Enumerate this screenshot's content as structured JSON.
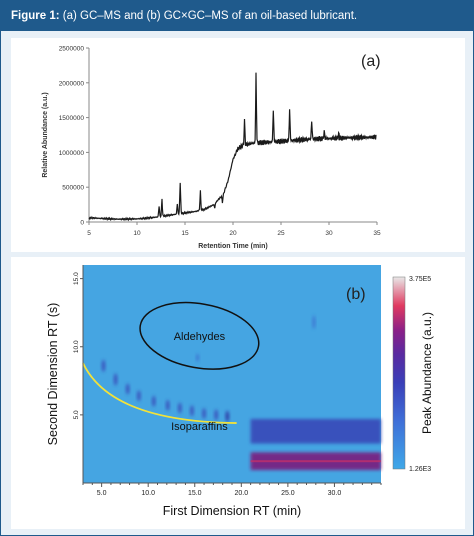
{
  "figure": {
    "label": "Figure 1:",
    "caption": "(a) GC–MS and (b) GC×GC–MS of an oil-based lubricant."
  },
  "chart_data": [
    {
      "type": "line",
      "panel_label": "(a)",
      "xlabel": "Retention Time (min)",
      "ylabel": "Relative Abundance (a.u.)",
      "xlim": [
        5,
        35
      ],
      "ylim": [
        0,
        2500000
      ],
      "xticks": [
        5,
        10,
        15,
        20,
        25,
        30,
        35
      ],
      "yticks": [
        0,
        500000,
        1000000,
        1500000,
        2000000,
        2500000
      ],
      "ytick_labels": [
        "0",
        "500000",
        "1000000",
        "1500000",
        "2000000",
        "2500000"
      ],
      "grid": false,
      "series": [
        {
          "color": "#1a1a1a",
          "baseline": [
            [
              5,
              60000
            ],
            [
              8,
              40000
            ],
            [
              10,
              45000
            ],
            [
              11,
              55000
            ],
            [
              12,
              70000
            ],
            [
              13,
              90000
            ],
            [
              14,
              110000
            ],
            [
              15,
              130000
            ],
            [
              16,
              150000
            ],
            [
              17,
              180000
            ],
            [
              18,
              250000
            ],
            [
              19,
              400000
            ],
            [
              19.5,
              600000
            ],
            [
              20,
              900000
            ],
            [
              20.5,
              1050000
            ],
            [
              21,
              1100000
            ],
            [
              22,
              1130000
            ],
            [
              24,
              1150000
            ],
            [
              26,
              1170000
            ],
            [
              28,
              1190000
            ],
            [
              30,
              1200000
            ],
            [
              32,
              1210000
            ],
            [
              35,
              1220000
            ]
          ],
          "peaks": [
            [
              12.3,
              230000
            ],
            [
              12.6,
              330000
            ],
            [
              14.5,
              570000
            ],
            [
              14.2,
              260000
            ],
            [
              16.6,
              450000
            ],
            [
              18.1,
              200000
            ],
            [
              18.9,
              280000
            ],
            [
              21.2,
              1450000
            ],
            [
              22.4,
              2130000
            ],
            [
              24.2,
              1600000
            ],
            [
              25.9,
              1630000
            ],
            [
              28.2,
              1450000
            ],
            [
              29.5,
              1300000
            ],
            [
              31.0,
              1270000
            ]
          ]
        }
      ]
    },
    {
      "type": "heatmap",
      "panel_label": "(b)",
      "xlabel": "First Dimension RT (min)",
      "ylabel": "Second Dimension RT (s)",
      "colorbar_label": "Peak Abundance (a.u.)",
      "colorbar_max": "3.75E5",
      "colorbar_min": "1.26E3",
      "xlim": [
        3,
        35
      ],
      "ylim": [
        0,
        16
      ],
      "xticks": [
        5,
        10,
        15,
        20,
        25,
        30
      ],
      "xtick_labels": [
        "5.0",
        "10.0",
        "15.0",
        "20.0",
        "25.0",
        "30.0"
      ],
      "yticks": [
        5,
        10,
        15
      ],
      "ytick_labels": [
        "5.0",
        "10.0",
        "15.0"
      ],
      "background_color": "#45a5e2",
      "annotations": [
        {
          "text": "Aldehydes",
          "x": 15.5,
          "y": 10.8
        },
        {
          "text": "Isoparaffins",
          "x": 15.5,
          "y": 4.2
        }
      ],
      "blobs": [
        {
          "x": 21,
          "y": 3.8,
          "w": 14,
          "h": 1.8,
          "level": 0.55
        },
        {
          "x": 21,
          "y": 1.6,
          "w": 14,
          "h": 1.3,
          "level": 0.95
        },
        {
          "x": 5.2,
          "y": 8.6,
          "w": 0.4,
          "h": 0.9,
          "level": 0.6
        },
        {
          "x": 6.5,
          "y": 7.6,
          "w": 0.4,
          "h": 0.9,
          "level": 0.6
        },
        {
          "x": 7.8,
          "y": 6.9,
          "w": 0.4,
          "h": 0.8,
          "level": 0.6
        },
        {
          "x": 9.0,
          "y": 6.4,
          "w": 0.4,
          "h": 0.8,
          "level": 0.65
        },
        {
          "x": 10.6,
          "y": 6.0,
          "w": 0.4,
          "h": 0.8,
          "level": 0.65
        },
        {
          "x": 12.1,
          "y": 5.7,
          "w": 0.4,
          "h": 0.8,
          "level": 0.65
        },
        {
          "x": 13.4,
          "y": 5.5,
          "w": 0.4,
          "h": 0.8,
          "level": 0.7
        },
        {
          "x": 14.7,
          "y": 5.3,
          "w": 0.4,
          "h": 0.8,
          "level": 0.7
        },
        {
          "x": 16.0,
          "y": 5.1,
          "w": 0.4,
          "h": 0.8,
          "level": 0.7
        },
        {
          "x": 17.3,
          "y": 5.0,
          "w": 0.4,
          "h": 0.8,
          "level": 0.7
        },
        {
          "x": 18.5,
          "y": 4.9,
          "w": 0.4,
          "h": 0.8,
          "level": 0.75
        },
        {
          "x": 15.3,
          "y": 9.2,
          "w": 0.3,
          "h": 0.6,
          "level": 0.45
        },
        {
          "x": 27.8,
          "y": 11.8,
          "w": 0.3,
          "h": 1.0,
          "level": 0.5
        }
      ]
    }
  ]
}
